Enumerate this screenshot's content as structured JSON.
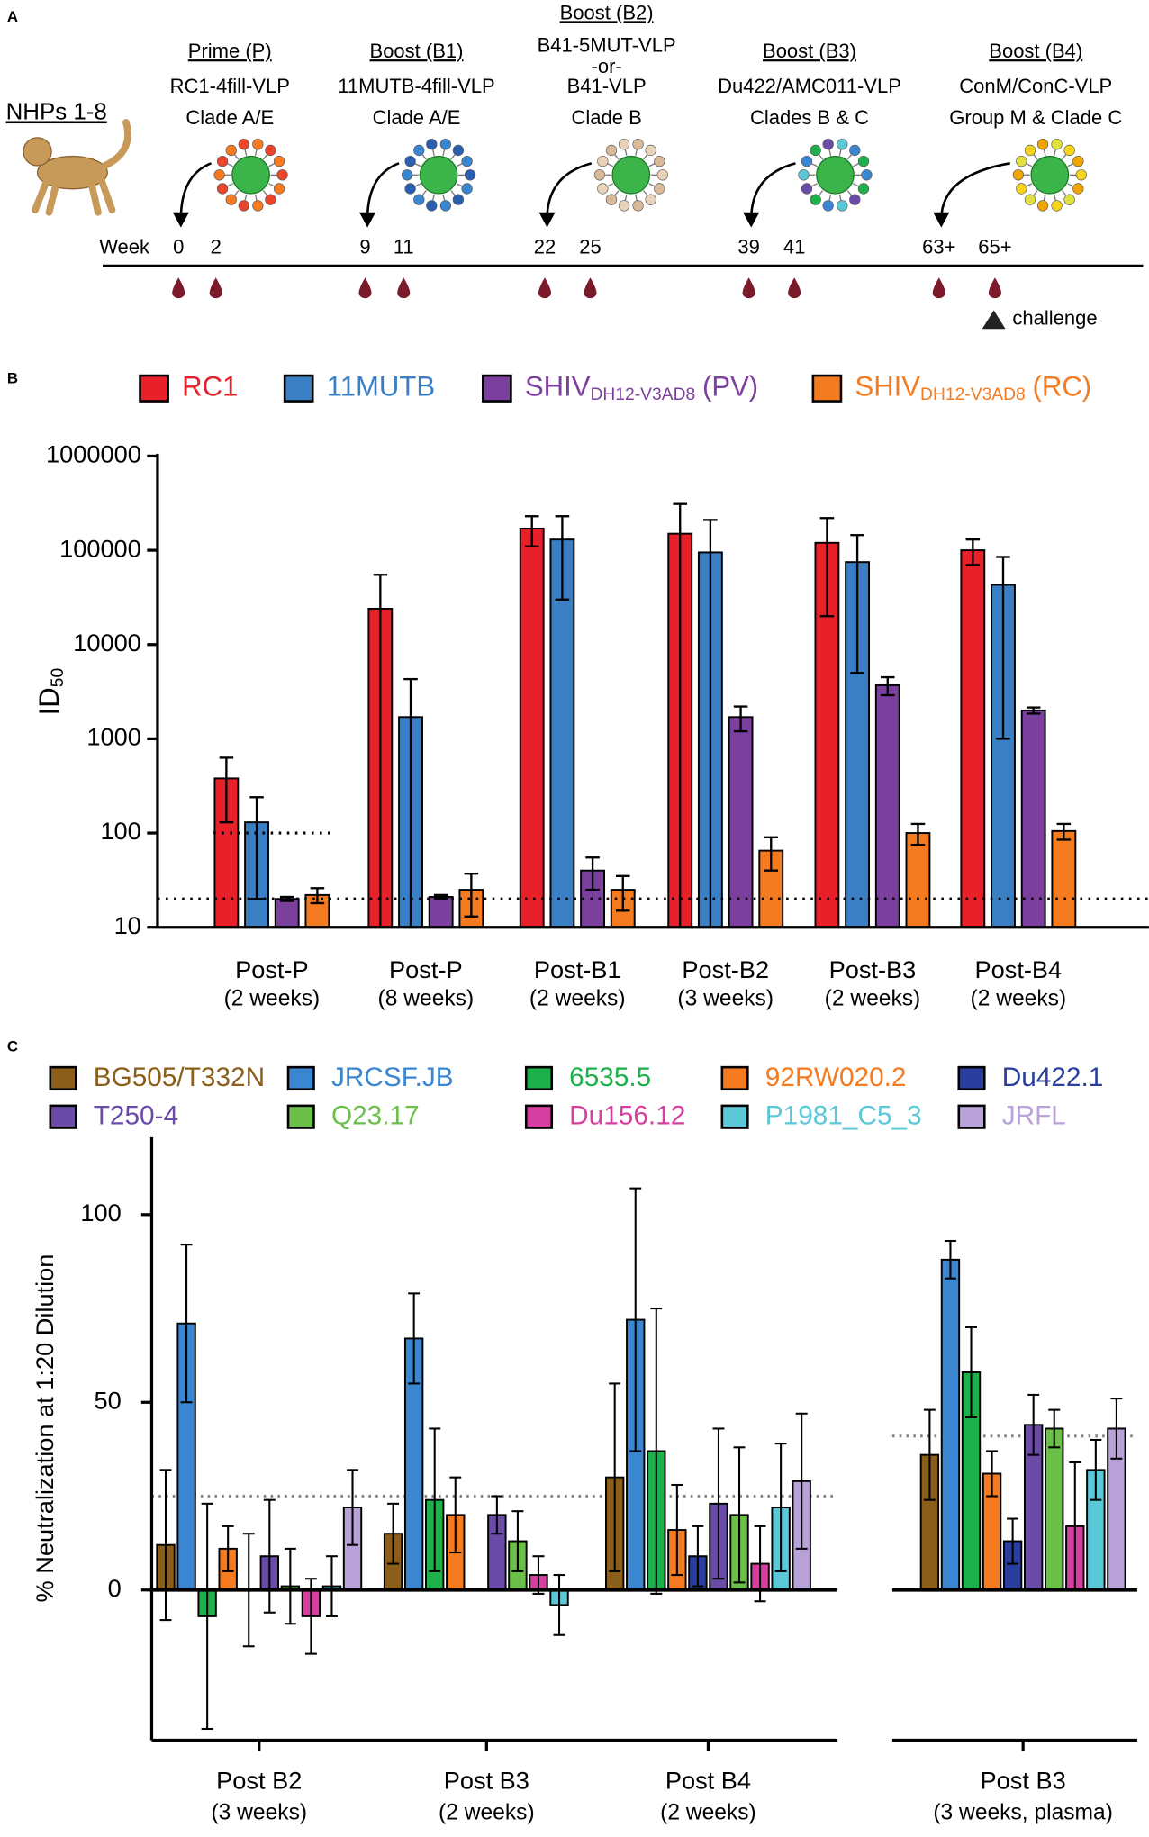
{
  "panel_a": {
    "label": "A",
    "subject": "NHPs 1-8",
    "week_label": "Week",
    "weeks": [
      "0",
      "2",
      "9",
      "11",
      "22",
      "25",
      "39",
      "41",
      "63+",
      "65+"
    ],
    "immunizations": [
      {
        "title": "Prime (P)",
        "lines": [
          "RC1-4fill-VLP",
          "Clade A/E"
        ]
      },
      {
        "title": "Boost (B1)",
        "lines": [
          "11MUTB-4fill-VLP",
          "Clade A/E"
        ]
      },
      {
        "title": "Boost (B2)",
        "lines": [
          "B41-5MUT-VLP",
          "-or-",
          "B41-VLP",
          "Clade B"
        ]
      },
      {
        "title": "Boost (B3)",
        "lines": [
          "Du422/AMC011-VLP",
          "Clades B & C"
        ]
      },
      {
        "title": "Boost (B4)",
        "lines": [
          "ConM/ConC-VLP",
          "Group M & Clade C"
        ]
      }
    ],
    "challenge": "challenge"
  },
  "chart_data": [
    {
      "type": "bar",
      "panel_label": "B",
      "log_scale": true,
      "ylabel": [
        "ID",
        "50"
      ],
      "categories": [
        "Post-P",
        "Post-P",
        "Post-B1",
        "Post-B2",
        "Post-B3",
        "Post-B4"
      ],
      "category_sublabels": [
        "(2 weeks)",
        "(8 weeks)",
        "(2 weeks)",
        "(3 weeks)",
        "(2 weeks)",
        "(2 weeks)"
      ],
      "ylim": [
        10,
        1000000
      ],
      "yticks": [
        10,
        100,
        1000,
        10000,
        100000,
        1000000
      ],
      "series": [
        {
          "name": "RC1",
          "color": "#e8202a",
          "values": [
            380,
            24000,
            170000,
            150000,
            120000,
            100000
          ],
          "errors": [
            250,
            31000,
            60000,
            160000,
            100000,
            30000
          ]
        },
        {
          "name": "11MUTB",
          "color": "#3a7fc4",
          "values": [
            130,
            1700,
            130000,
            95000,
            75000,
            43000
          ],
          "errors": [
            110,
            2600,
            100000,
            115000,
            70000,
            42000
          ]
        },
        {
          "name": [
            "SHIV",
            "DH12-V3AD8",
            "(PV)"
          ],
          "color": "#7b3f9e",
          "values": [
            20,
            21,
            40,
            1700,
            3700,
            2000
          ],
          "errors": [
            1,
            1,
            15,
            500,
            800,
            150
          ]
        },
        {
          "name": [
            "SHIV",
            "DH12-V3AD8",
            "(RC)"
          ],
          "color": "#f47b20",
          "values": [
            22,
            25,
            25,
            65,
            100,
            105
          ],
          "errors": [
            4,
            12,
            10,
            25,
            25,
            20
          ]
        }
      ],
      "reference_lines": [
        {
          "value": 100,
          "categories": [
            0
          ]
        },
        {
          "value": 20,
          "categories": [
            0,
            1,
            2,
            3,
            4,
            5
          ]
        }
      ]
    },
    {
      "type": "bar",
      "panel_label": "C",
      "ylabel": "% Neutralization at 1:20 Dilution",
      "categories": [
        "Post B2",
        "Post B3",
        "Post B4",
        "Post B3"
      ],
      "category_sublabels": [
        "(3 weeks)",
        "(2 weeks)",
        "(2 weeks)",
        "(3 weeks, plasma)"
      ],
      "ylim": [
        -40,
        120
      ],
      "yticks": [
        0,
        50,
        100
      ],
      "series": [
        {
          "name": "BG505/T332N",
          "color": "#8b5e1a",
          "values": [
            12,
            15,
            30,
            36
          ],
          "errors": [
            20,
            8,
            25,
            12
          ]
        },
        {
          "name": "JRCSF.JB",
          "color": "#3a86d1",
          "values": [
            71,
            67,
            72,
            88
          ],
          "errors": [
            21,
            12,
            35,
            5
          ]
        },
        {
          "name": "6535.5",
          "color": "#1db04b",
          "values": [
            -7,
            24,
            37,
            58
          ],
          "errors": [
            30,
            19,
            38,
            12
          ]
        },
        {
          "name": "92RW020.2",
          "color": "#f47b20",
          "values": [
            11,
            20,
            16,
            31
          ],
          "errors": [
            6,
            10,
            12,
            6
          ]
        },
        {
          "name": "Du422.1",
          "color": "#2a3f9d",
          "values": [
            0,
            null,
            9,
            13
          ],
          "errors": [
            15,
            null,
            8,
            6
          ]
        },
        {
          "name": "T250-4",
          "color": "#6a4ba8",
          "values": [
            9,
            20,
            23,
            44
          ],
          "errors": [
            15,
            5,
            20,
            8
          ]
        },
        {
          "name": "Q23.17",
          "color": "#6cc04a",
          "values": [
            1,
            13,
            20,
            43
          ],
          "errors": [
            10,
            8,
            18,
            5
          ]
        },
        {
          "name": "Du156.12",
          "color": "#d63fa0",
          "values": [
            -7,
            4,
            7,
            17
          ],
          "errors": [
            10,
            5,
            10,
            17
          ]
        },
        {
          "name": "P1981_C5_3",
          "color": "#5bc8d8",
          "values": [
            1,
            -4,
            22,
            32
          ],
          "errors": [
            8,
            8,
            17,
            8
          ]
        },
        {
          "name": "JRFL",
          "color": "#b9a2d8",
          "values": [
            22,
            null,
            29,
            43
          ],
          "errors": [
            10,
            null,
            18,
            8
          ]
        }
      ],
      "reference_lines": [
        {
          "value": 25,
          "categories": [
            0,
            1,
            2
          ]
        },
        {
          "value": 41,
          "categories": [
            3
          ]
        }
      ]
    }
  ]
}
